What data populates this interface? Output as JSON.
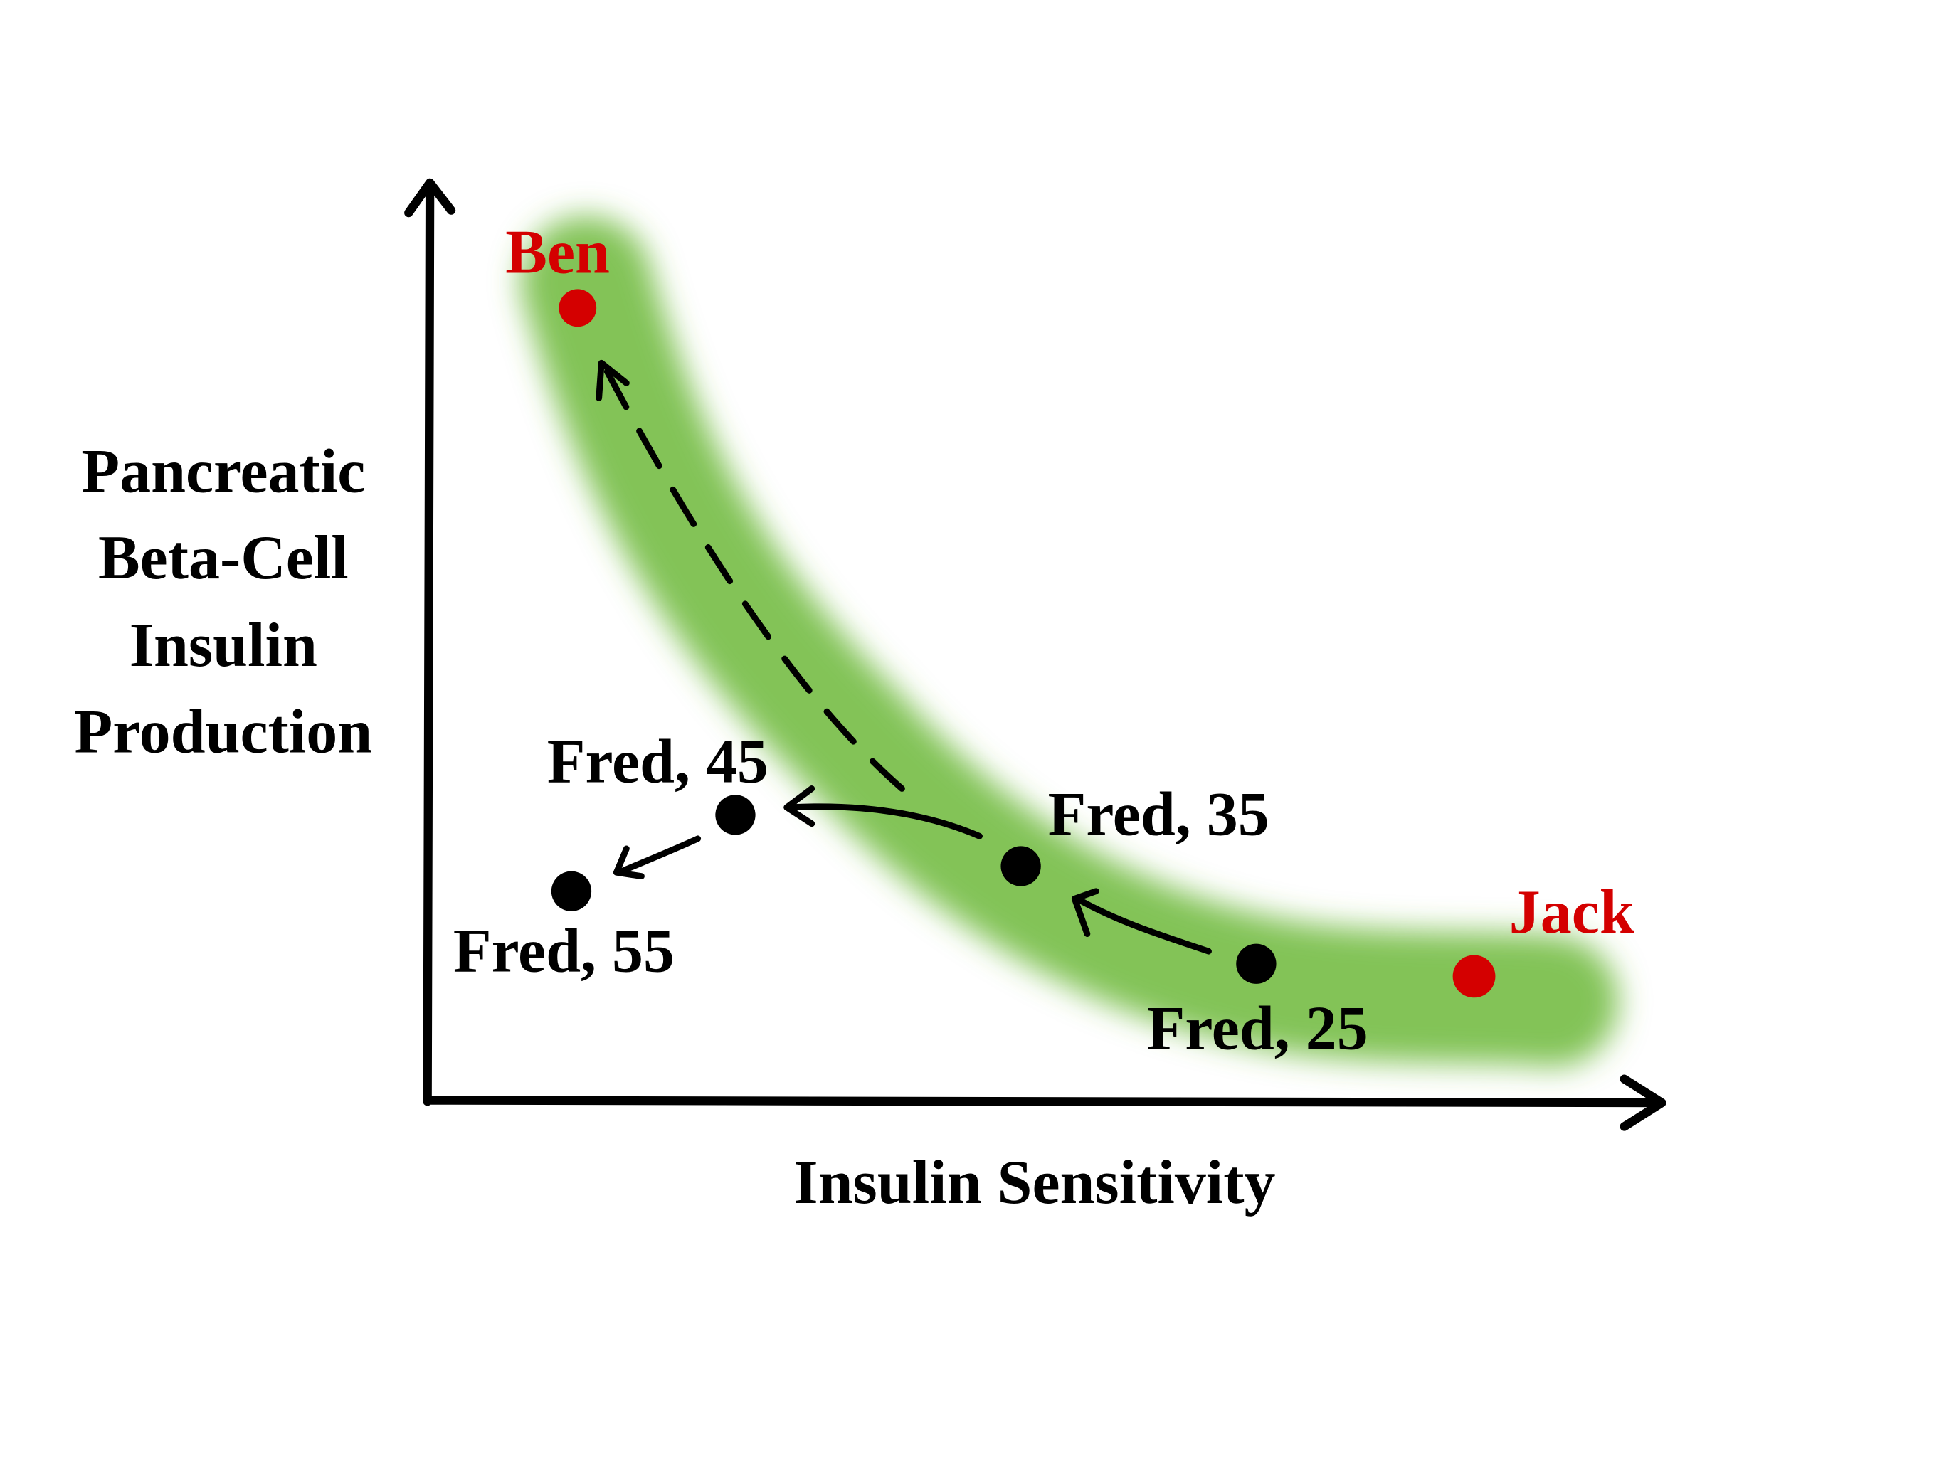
{
  "axes": {
    "y_label_lines": [
      "Pancreatic",
      "Beta-Cell",
      "Insulin",
      "Production"
    ],
    "x_label": "Insulin Sensitivity"
  },
  "points": {
    "ben": {
      "label": "Ben",
      "color": "#d40000"
    },
    "jack": {
      "label": "Jack",
      "color": "#d40000"
    },
    "fred_25": {
      "label": "Fred, 25",
      "color": "#000000"
    },
    "fred_35": {
      "label": "Fred, 35",
      "color": "#000000"
    },
    "fred_45": {
      "label": "Fred, 45",
      "color": "#000000"
    },
    "fred_55": {
      "label": "Fred, 55",
      "color": "#000000"
    }
  },
  "colors": {
    "band": "#6cb83a",
    "axis": "#000000",
    "highlight": "#d40000"
  }
}
